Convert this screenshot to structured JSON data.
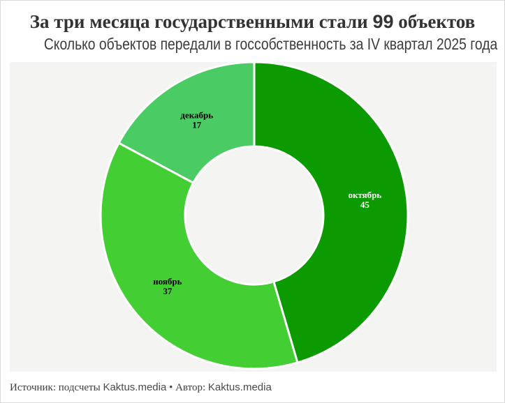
{
  "page": {
    "title_parts": {
      "prefix": "За три месяца государственными стали ",
      "number": "99",
      "suffix": " объектов"
    },
    "subtitle": "Сколько объектов передали в госсобственность за IV квартал 2025 года",
    "footer": {
      "source_label": "Источник: подсчеты ",
      "source_brand": "Kaktus.media",
      "separator": " • ",
      "author_label": "Автор: ",
      "author_brand": "Kaktus.media"
    }
  },
  "colors": {
    "page_bg": "#ffffff",
    "chart_bg": "#f4f4f3",
    "border": "#d9d9d9",
    "title_text": "#333333",
    "segment_gap": "#ffffff"
  },
  "chart_data": {
    "type": "pie",
    "donut": true,
    "title": "За три месяца государственными стали 99 объектов",
    "subtitle": "Сколько объектов передали в госсобственность за IV квартал 2025 года",
    "total": 99,
    "start_angle_deg": 0,
    "direction": "clockwise",
    "legend_position": "none",
    "slices": [
      {
        "id": "october",
        "label": "октябрь",
        "value": 45,
        "color": "#0b9a00",
        "label_color": "#ffffff"
      },
      {
        "id": "november",
        "label": "ноябрь",
        "value": 37,
        "color": "#43ce34",
        "label_color": "#000000"
      },
      {
        "id": "december",
        "label": "декабрь",
        "value": 17,
        "color": "#4bcb64",
        "label_color": "#000000"
      }
    ]
  }
}
